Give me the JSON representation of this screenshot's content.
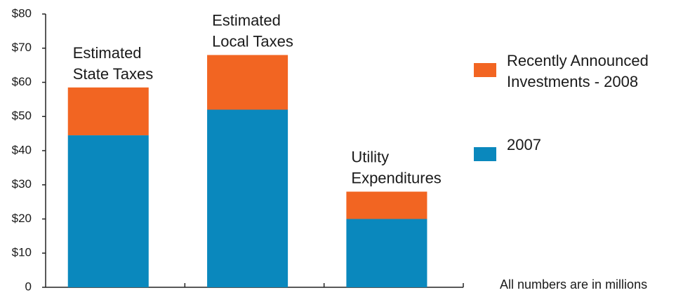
{
  "chart_data": {
    "type": "stacked_bar",
    "categories": [
      "Estimated\nState Taxes",
      "Estimated\nLocal Taxes",
      "Utility\nExpenditures"
    ],
    "series": [
      {
        "name": "2007",
        "color": "#0a88bd",
        "values": [
          44.5,
          52,
          20
        ]
      },
      {
        "name": "Recently Announced\nInvestments - 2008",
        "color": "#f26522",
        "values": [
          14,
          16,
          8
        ]
      }
    ],
    "ylim": [
      0,
      80
    ],
    "yticks": [
      0,
      {
        "value": 10,
        "label": "$10"
      },
      {
        "value": 20,
        "label": "$20"
      },
      {
        "value": 30,
        "label": "$30"
      },
      {
        "value": 40,
        "label": "$40"
      },
      {
        "value": 50,
        "label": "$50"
      },
      {
        "value": 60,
        "label": "$60"
      },
      {
        "value": 70,
        "label": "$70"
      },
      {
        "value": 80,
        "label": "$80"
      }
    ],
    "annotation": "All numbers are in millions",
    "legend": "right"
  }
}
